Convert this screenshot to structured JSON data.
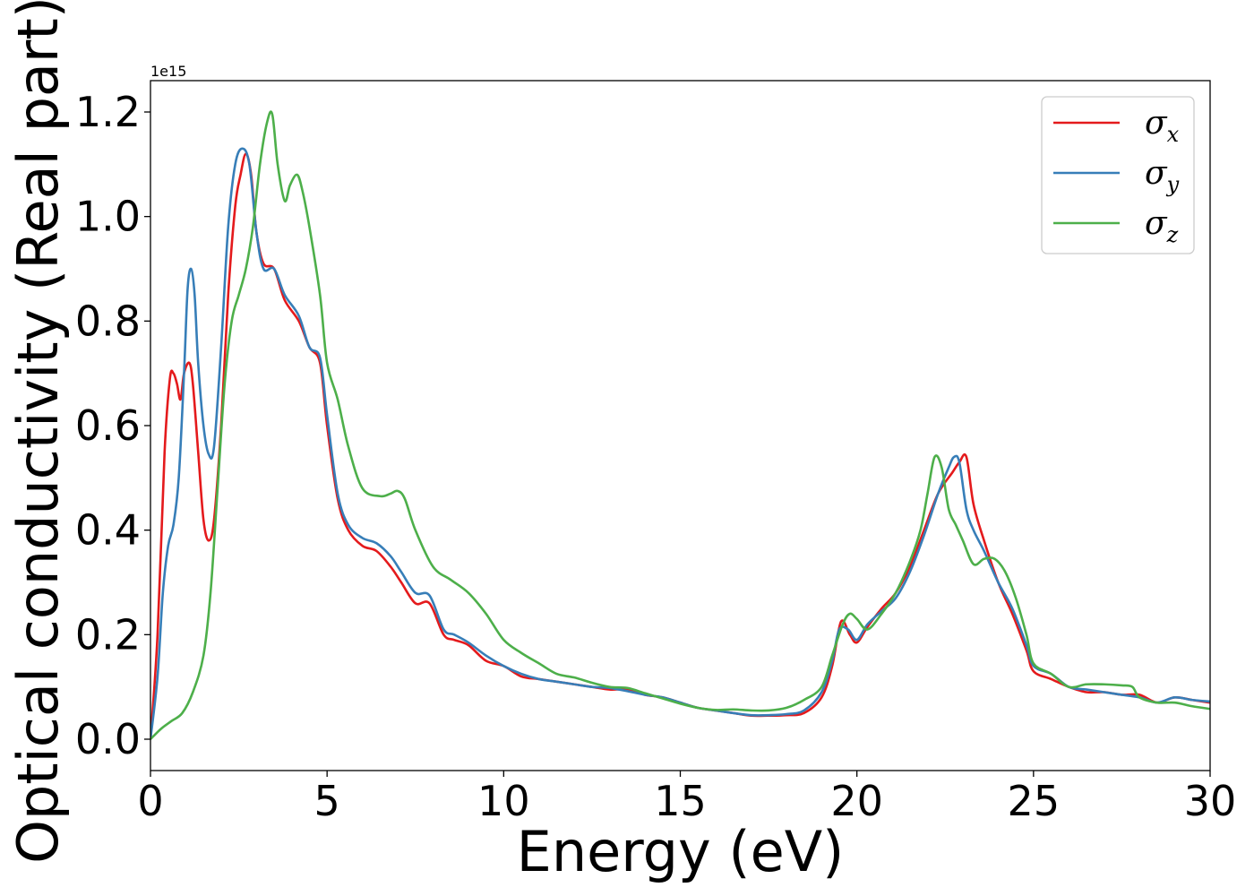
{
  "chart_data": {
    "type": "line",
    "xlabel": "Energy (eV)",
    "ylabel": "Optical conductivity (Real part)",
    "y_offset_label": "1e15",
    "xlim": [
      0,
      30
    ],
    "ylim": [
      -0.06,
      1.26
    ],
    "x_ticks": [
      0,
      5,
      10,
      15,
      20,
      25,
      30
    ],
    "x_tick_labels": [
      "0",
      "5",
      "10",
      "15",
      "20",
      "25",
      "30"
    ],
    "y_ticks": [
      0.0,
      0.2,
      0.4,
      0.6,
      0.8,
      1.0,
      1.2
    ],
    "y_tick_labels": [
      "0.0",
      "0.2",
      "0.4",
      "0.6",
      "0.8",
      "1.0",
      "1.2"
    ],
    "grid": false,
    "legend_position": "top-right",
    "series": [
      {
        "name": "σ_x",
        "color": "#e41a1c",
        "x": [
          0,
          0.2,
          0.4,
          0.55,
          0.65,
          0.75,
          0.85,
          0.95,
          1.1,
          1.2,
          1.35,
          1.5,
          1.65,
          1.8,
          2.0,
          2.2,
          2.4,
          2.55,
          2.7,
          2.85,
          3.0,
          3.2,
          3.5,
          3.8,
          4.2,
          4.5,
          4.8,
          5.0,
          5.3,
          5.6,
          6.0,
          6.4,
          6.8,
          7.1,
          7.5,
          7.9,
          8.3,
          8.6,
          9.0,
          9.5,
          10.0,
          10.5,
          11.0,
          11.5,
          12.0,
          12.5,
          13.0,
          13.5,
          14.0,
          14.5,
          15.0,
          15.5,
          16.0,
          16.5,
          17.0,
          17.5,
          18.0,
          18.5,
          19.0,
          19.3,
          19.55,
          19.8,
          20.0,
          20.3,
          20.7,
          21.1,
          21.5,
          21.9,
          22.3,
          22.7,
          22.9,
          23.1,
          23.3,
          23.6,
          24.0,
          24.4,
          24.8,
          25.0,
          25.5,
          26.0,
          26.5,
          27.0,
          27.5,
          28.0,
          28.5,
          29.0,
          29.5,
          30.0
        ],
        "y": [
          0.0,
          0.2,
          0.55,
          0.69,
          0.7,
          0.68,
          0.65,
          0.7,
          0.72,
          0.68,
          0.55,
          0.42,
          0.38,
          0.42,
          0.6,
          0.85,
          1.02,
          1.08,
          1.12,
          1.08,
          0.97,
          0.91,
          0.9,
          0.84,
          0.8,
          0.75,
          0.72,
          0.6,
          0.46,
          0.4,
          0.37,
          0.36,
          0.33,
          0.3,
          0.26,
          0.26,
          0.2,
          0.19,
          0.18,
          0.15,
          0.14,
          0.12,
          0.115,
          0.11,
          0.105,
          0.1,
          0.095,
          0.095,
          0.085,
          0.08,
          0.07,
          0.06,
          0.055,
          0.05,
          0.045,
          0.045,
          0.046,
          0.05,
          0.08,
          0.14,
          0.225,
          0.2,
          0.185,
          0.215,
          0.25,
          0.28,
          0.33,
          0.4,
          0.47,
          0.51,
          0.53,
          0.54,
          0.45,
          0.38,
          0.3,
          0.24,
          0.17,
          0.13,
          0.115,
          0.1,
          0.09,
          0.09,
          0.085,
          0.085,
          0.07,
          0.08,
          0.075,
          0.07
        ]
      },
      {
        "name": "σ_y",
        "color": "#377eb8",
        "x": [
          0,
          0.2,
          0.35,
          0.5,
          0.65,
          0.8,
          0.95,
          1.05,
          1.15,
          1.25,
          1.35,
          1.5,
          1.65,
          1.8,
          2.0,
          2.2,
          2.4,
          2.6,
          2.8,
          3.0,
          3.2,
          3.5,
          3.8,
          4.2,
          4.5,
          4.8,
          5.0,
          5.3,
          5.6,
          6.0,
          6.4,
          6.8,
          7.1,
          7.5,
          7.9,
          8.3,
          8.6,
          9.0,
          9.5,
          10.0,
          10.5,
          11.0,
          11.5,
          12.0,
          12.5,
          13.0,
          13.5,
          14.0,
          14.5,
          15.0,
          15.5,
          16.0,
          16.5,
          17.0,
          17.5,
          18.0,
          18.5,
          19.0,
          19.3,
          19.5,
          19.75,
          20.0,
          20.3,
          20.7,
          21.1,
          21.5,
          21.9,
          22.3,
          22.6,
          22.75,
          22.9,
          23.1,
          23.3,
          23.6,
          24.0,
          24.4,
          24.8,
          25.0,
          25.5,
          26.0,
          26.5,
          27.0,
          27.5,
          28.0,
          28.5,
          29.0,
          29.5,
          30.0
        ],
        "y": [
          0.0,
          0.12,
          0.28,
          0.37,
          0.41,
          0.5,
          0.7,
          0.86,
          0.9,
          0.85,
          0.72,
          0.6,
          0.545,
          0.56,
          0.75,
          0.98,
          1.1,
          1.13,
          1.1,
          0.97,
          0.9,
          0.9,
          0.85,
          0.81,
          0.75,
          0.73,
          0.62,
          0.47,
          0.41,
          0.385,
          0.375,
          0.35,
          0.32,
          0.28,
          0.275,
          0.21,
          0.2,
          0.185,
          0.16,
          0.14,
          0.125,
          0.115,
          0.11,
          0.105,
          0.1,
          0.098,
          0.092,
          0.085,
          0.08,
          0.07,
          0.06,
          0.055,
          0.05,
          0.046,
          0.046,
          0.048,
          0.055,
          0.09,
          0.15,
          0.21,
          0.21,
          0.19,
          0.22,
          0.245,
          0.27,
          0.32,
          0.39,
          0.47,
          0.52,
          0.54,
          0.53,
          0.44,
          0.4,
          0.36,
          0.3,
          0.25,
          0.18,
          0.14,
          0.125,
          0.1,
          0.095,
          0.09,
          0.085,
          0.08,
          0.07,
          0.08,
          0.075,
          0.072
        ]
      },
      {
        "name": "σ_z",
        "color": "#4daf4a",
        "x": [
          0,
          0.3,
          0.6,
          0.9,
          1.2,
          1.5,
          1.7,
          1.9,
          2.1,
          2.3,
          2.5,
          2.7,
          2.9,
          3.1,
          3.3,
          3.45,
          3.6,
          3.8,
          3.95,
          4.15,
          4.3,
          4.5,
          4.8,
          5.0,
          5.3,
          5.6,
          6.0,
          6.5,
          6.8,
          7.0,
          7.2,
          7.5,
          8.0,
          8.5,
          9.0,
          9.5,
          10.0,
          10.5,
          11.0,
          11.5,
          12.0,
          12.5,
          13.0,
          13.5,
          14.0,
          14.5,
          15.0,
          15.5,
          16.0,
          16.5,
          17.0,
          17.5,
          18.0,
          18.5,
          19.0,
          19.3,
          19.6,
          19.8,
          20.0,
          20.3,
          20.7,
          21.1,
          21.5,
          21.8,
          22.0,
          22.2,
          22.4,
          22.6,
          22.8,
          23.0,
          23.3,
          23.6,
          23.9,
          24.2,
          24.5,
          24.8,
          25.0,
          25.5,
          26.0,
          26.5,
          27.0,
          27.5,
          27.8,
          28.0,
          28.5,
          29.0,
          29.5,
          30.0
        ],
        "y": [
          0.0,
          0.02,
          0.035,
          0.05,
          0.09,
          0.16,
          0.28,
          0.48,
          0.68,
          0.8,
          0.85,
          0.9,
          0.98,
          1.1,
          1.18,
          1.195,
          1.1,
          1.03,
          1.06,
          1.08,
          1.05,
          0.98,
          0.85,
          0.72,
          0.65,
          0.56,
          0.48,
          0.465,
          0.47,
          0.475,
          0.46,
          0.4,
          0.33,
          0.305,
          0.28,
          0.24,
          0.19,
          0.165,
          0.145,
          0.125,
          0.118,
          0.108,
          0.1,
          0.098,
          0.088,
          0.078,
          0.068,
          0.06,
          0.056,
          0.057,
          0.055,
          0.055,
          0.06,
          0.075,
          0.1,
          0.16,
          0.22,
          0.24,
          0.23,
          0.21,
          0.24,
          0.28,
          0.34,
          0.4,
          0.47,
          0.54,
          0.52,
          0.44,
          0.41,
          0.38,
          0.335,
          0.345,
          0.345,
          0.32,
          0.27,
          0.2,
          0.145,
          0.125,
          0.1,
          0.105,
          0.105,
          0.103,
          0.1,
          0.08,
          0.07,
          0.07,
          0.063,
          0.058
        ]
      }
    ]
  }
}
